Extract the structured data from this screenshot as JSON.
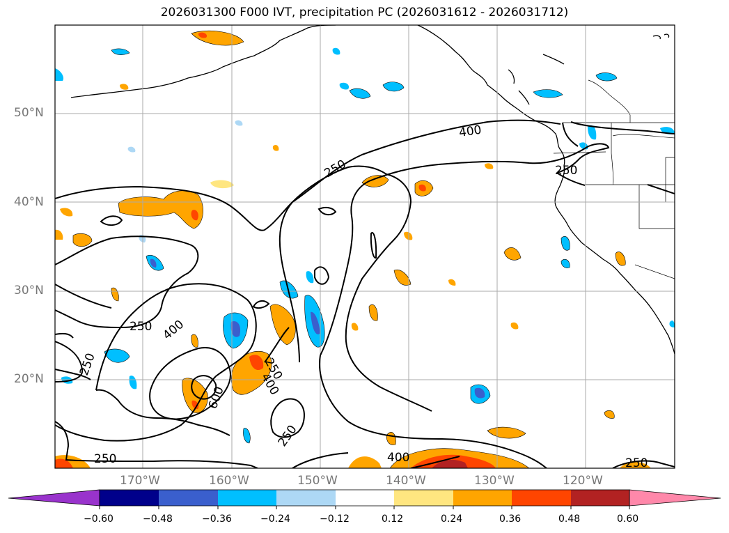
{
  "title": "2026031300 F000 IVT, precipitation PC (2026031612 - 2026031712)",
  "lat_labels": [
    "50°N",
    "40°N",
    "30°N",
    "20°N"
  ],
  "lon_labels": [
    "170°W",
    "160°W",
    "150°W",
    "140°W",
    "130°W",
    "120°W"
  ],
  "contour_labels": [
    "400",
    "250",
    "250",
    "400",
    "250",
    "250",
    "400",
    "250",
    "600",
    "250",
    "250",
    "400",
    "250"
  ],
  "colorbar": {
    "ticks": [
      "−0.60",
      "−0.48",
      "−0.36",
      "−0.24",
      "−0.12",
      "0.12",
      "0.24",
      "0.36",
      "0.48",
      "0.60"
    ],
    "colors": [
      "#9933cc",
      "#00008b",
      "#3a5fcd",
      "#00bfff",
      "#add8f5",
      "#ffffff",
      "#ffe680",
      "#ffa500",
      "#ff4500",
      "#b22222",
      "#ff88aa"
    ]
  }
}
